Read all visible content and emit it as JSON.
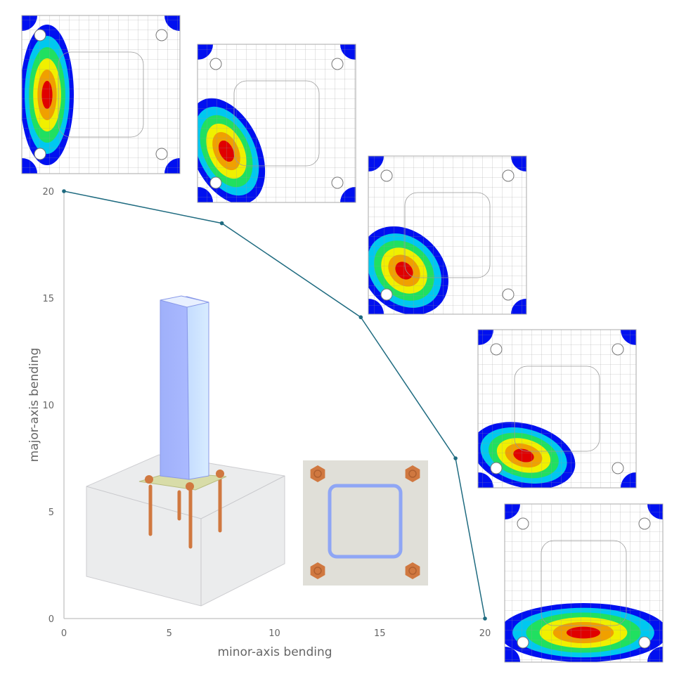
{
  "chart_data": {
    "type": "line",
    "xlabel": "minor-axis bending",
    "ylabel": "major-axis bending",
    "xlim": [
      0,
      20
    ],
    "ylim": [
      0,
      20
    ],
    "xticks": [
      "0",
      "5",
      "10",
      "15",
      "20"
    ],
    "yticks": [
      "0",
      "5",
      "10",
      "15",
      "20"
    ],
    "grid": false,
    "series": [
      {
        "x": [
          0,
          7.5,
          14.1,
          18.6,
          20
        ],
        "y": [
          20,
          18.5,
          14.1,
          7.5,
          0
        ],
        "color": "#1f6b80"
      }
    ]
  },
  "colors": {
    "line": "#1f6b80",
    "axis": "#cccccc",
    "contour": [
      "#0010f0",
      "#00c8f0",
      "#20e060",
      "#f0f000",
      "#f0a000",
      "#e00000"
    ],
    "column": "#a8b8f8",
    "bolt": "#d07840",
    "plate": "#e0dfd8"
  },
  "illustrations": {
    "contour_panels": 5,
    "column_3d": "column-base-3d-view",
    "plate_top": "base-plate-top-view"
  }
}
